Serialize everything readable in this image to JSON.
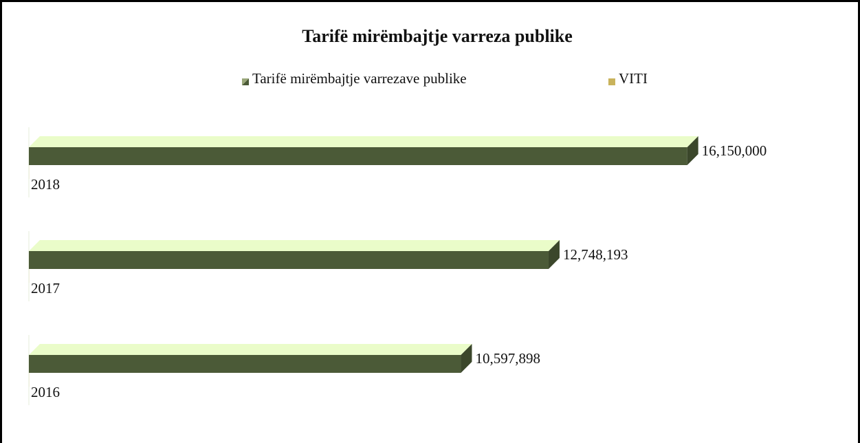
{
  "chart_data": {
    "type": "bar3d_horizontal",
    "title": "Tarifë mirëmbajtje varreza publike",
    "categories": [
      "2018",
      "2017",
      "2016"
    ],
    "series": [
      {
        "name": "Tarifë mirëmbajtje varrezave publike",
        "color": "#4b5a37",
        "top_color": "#eafcc9",
        "values": [
          16150000,
          12748193,
          10597898
        ],
        "value_labels": [
          "16,150,000",
          "12,748,193",
          "10,597,898"
        ]
      },
      {
        "name": "VITI",
        "color": "#c9b35c",
        "values": [
          2018,
          2017,
          2016
        ]
      }
    ],
    "xlim": [
      0,
      20000000
    ],
    "legend": "top"
  }
}
